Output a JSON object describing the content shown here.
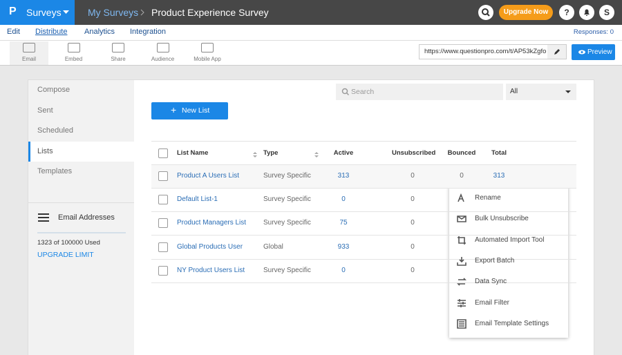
{
  "topbar": {
    "logo": "P",
    "app": "Surveys",
    "breadcrumb": [
      "My Surveys",
      "Product Experience Survey"
    ],
    "upgrade": "Upgrade Now",
    "help": "?",
    "user_initial": "S"
  },
  "tabs": {
    "items": [
      "Edit",
      "Distribute",
      "Analytics",
      "Integration"
    ],
    "active": 1
  },
  "responses": "Responses: 0",
  "toolbar": {
    "items": [
      "Email",
      "Embed",
      "Share",
      "Audience",
      "Mobile App"
    ],
    "active": 0
  },
  "url": "https://www.questionpro.com/t/AP53kZgfo",
  "preview": "Preview",
  "sidebar": {
    "items": [
      "Compose",
      "Sent",
      "Scheduled",
      "Lists",
      "Templates"
    ],
    "active": 3,
    "email_title": "Email Addresses",
    "usage": "1323 of 100000 Used",
    "upgrade": "UPGRADE LIMIT"
  },
  "search_placeholder": "Search",
  "filter": "All",
  "new_list": "New List",
  "table": {
    "headers": [
      "List Name",
      "Type",
      "Active",
      "Unsubscribed",
      "Bounced",
      "Total"
    ],
    "rows": [
      {
        "name": "Product A Users List",
        "type": "Survey Specific",
        "active": 313,
        "unsubscribed": 0,
        "bounced": 0,
        "total": 313
      },
      {
        "name": "Default List-1",
        "type": "Survey Specific",
        "active": 0,
        "unsubscribed": 0
      },
      {
        "name": "Product Managers List",
        "type": "Survey Specific",
        "active": 75,
        "unsubscribed": 0
      },
      {
        "name": "Global Products User",
        "type": "Global",
        "active": 933,
        "unsubscribed": 0
      },
      {
        "name": "NY Product Users List",
        "type": "Survey Specific",
        "active": 0,
        "unsubscribed": 0
      }
    ]
  },
  "menu": [
    "Rename",
    "Bulk Unsubscribe",
    "Automated Import Tool",
    "Export Batch",
    "Data Sync",
    "Email Filter",
    "Email Template Settings"
  ]
}
